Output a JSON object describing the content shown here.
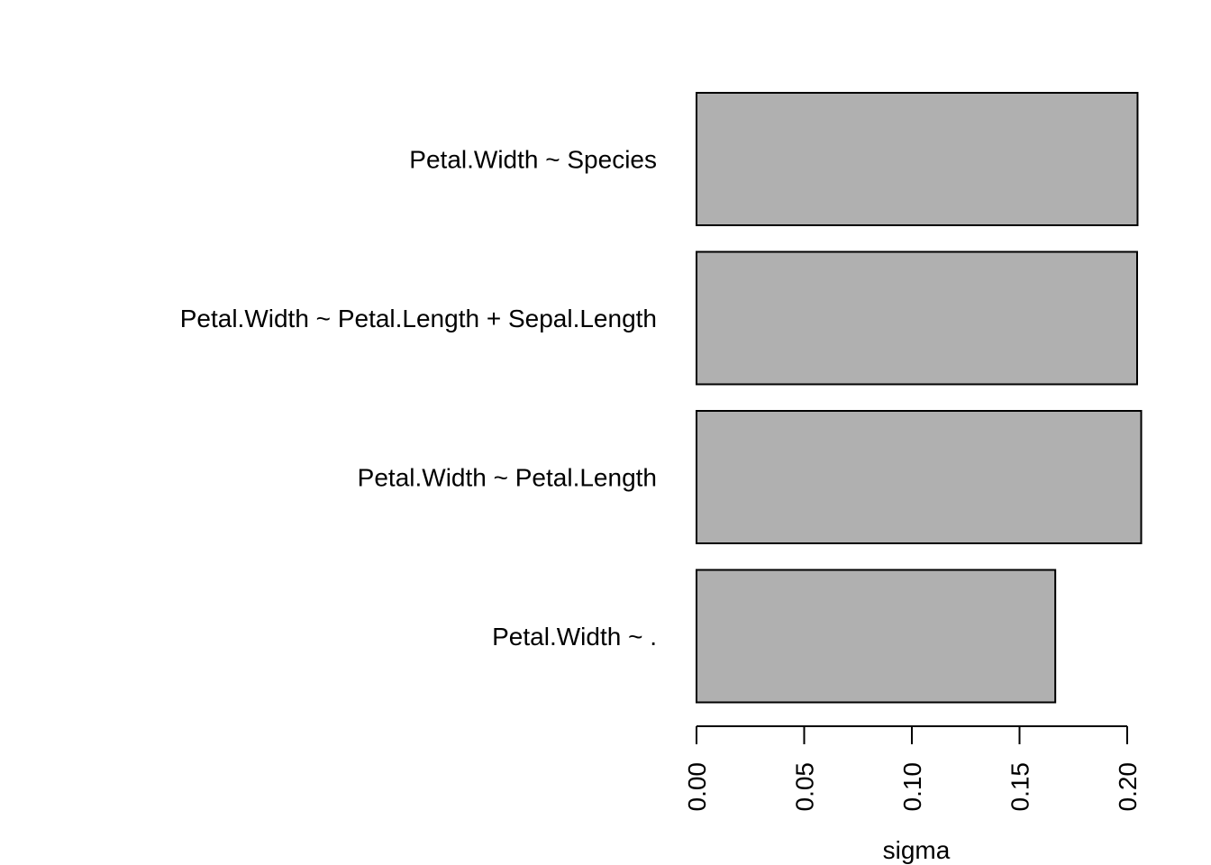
{
  "chart_data": {
    "type": "bar",
    "orientation": "horizontal",
    "categories": [
      "Petal.Width ~ Species",
      "Petal.Width ~ Petal.Length + Sepal.Length",
      "Petal.Width ~ Petal.Length",
      "Petal.Width ~ ."
    ],
    "values": [
      0.2048,
      0.2046,
      0.2065,
      0.1666
    ],
    "xlabel": "sigma",
    "ylabel": "",
    "title": "",
    "xlim": [
      0,
      0.2065
    ],
    "ticks": [
      0.0,
      0.05,
      0.1,
      0.15,
      0.2
    ],
    "tick_labels": [
      "0.00",
      "0.05",
      "0.10",
      "0.15",
      "0.20"
    ],
    "bar_color": "#b0b0b0",
    "border_color": "#000000",
    "grid": false,
    "legend": "none"
  }
}
